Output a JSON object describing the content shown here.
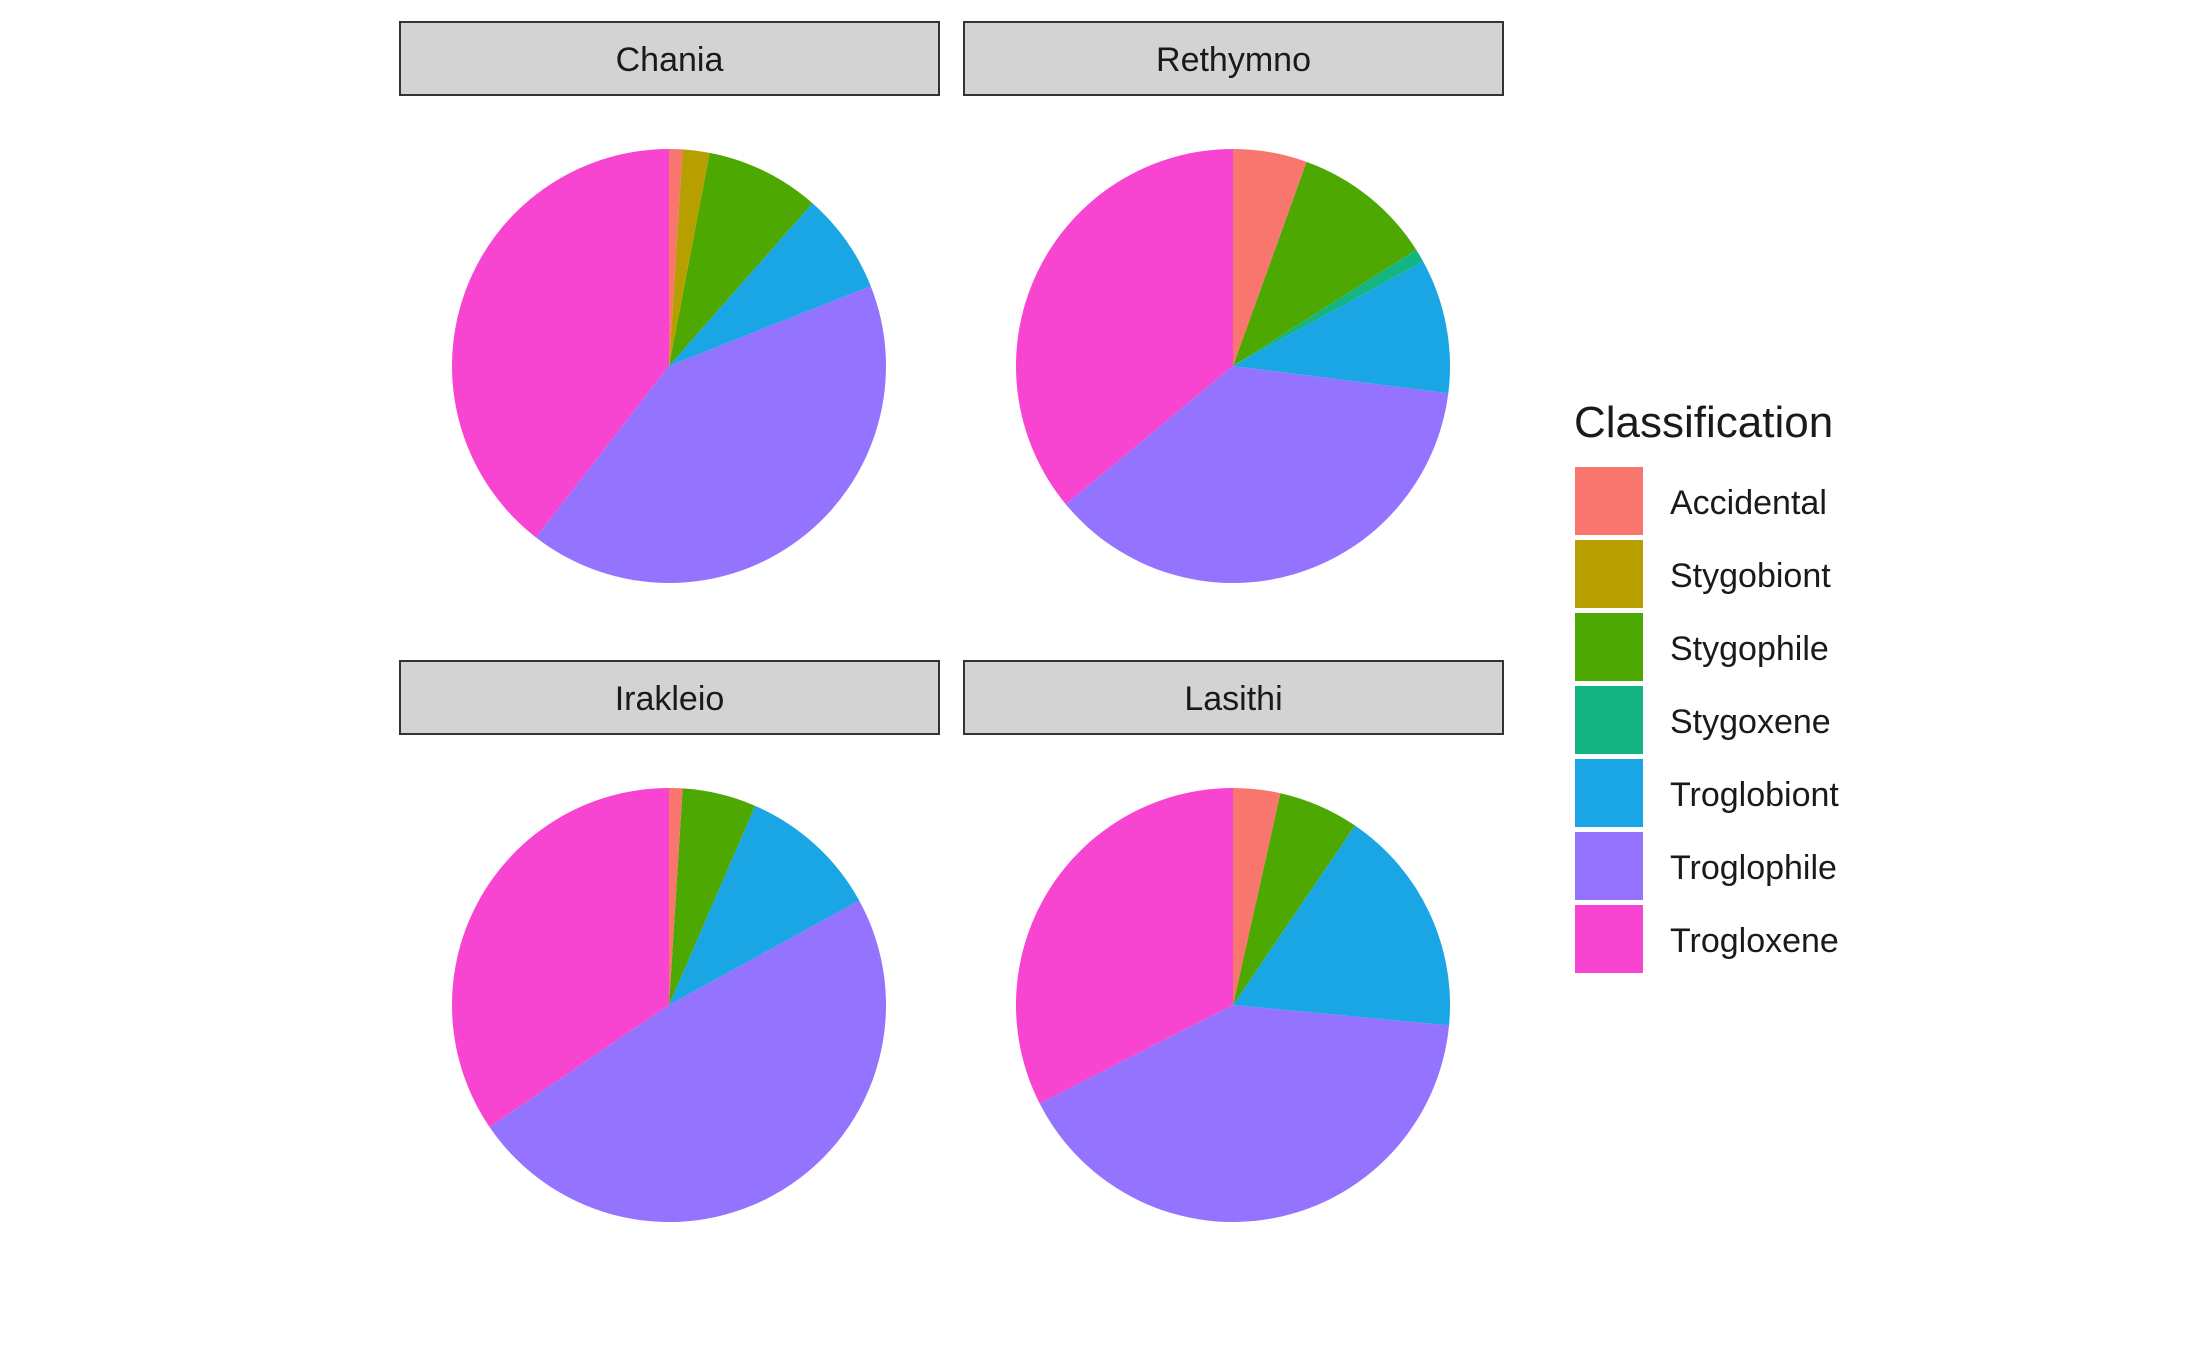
{
  "chart_data": {
    "type": "pie",
    "categories": [
      "Accidental",
      "Stygobiont",
      "Stygophile",
      "Stygoxene",
      "Troglobiont",
      "Troglophile",
      "Trogloxene"
    ],
    "colors": {
      "Accidental": "#F8766D",
      "Stygobiont": "#B79F00",
      "Stygophile": "#4DA802",
      "Stygoxene": "#14B582",
      "Troglobiont": "#1AA6E4",
      "Troglophile": "#9474FF",
      "Trogloxene": "#F745D1"
    },
    "legend": {
      "title": "Classification",
      "position": "right"
    },
    "facets": [
      {
        "name": "Chania",
        "values": {
          "Accidental": 1,
          "Stygobiont": 2,
          "Stygophile": 8.5,
          "Stygoxene": 0,
          "Troglobiont": 7.5,
          "Troglophile": 41.5,
          "Trogloxene": 39.5
        }
      },
      {
        "name": "Rethymno",
        "values": {
          "Accidental": 5.5,
          "Stygobiont": 0,
          "Stygophile": 10.5,
          "Stygoxene": 1,
          "Troglobiont": 10,
          "Troglophile": 37,
          "Trogloxene": 36
        }
      },
      {
        "name": "Irakleio",
        "values": {
          "Accidental": 1,
          "Stygobiont": 0,
          "Stygophile": 5.5,
          "Stygoxene": 0,
          "Troglobiont": 10.5,
          "Troglophile": 48.5,
          "Trogloxene": 34.5
        }
      },
      {
        "name": "Lasithi",
        "values": {
          "Accidental": 3.5,
          "Stygobiont": 0,
          "Stygophile": 6,
          "Stygoxene": 0,
          "Troglobiont": 17,
          "Troglophile": 41,
          "Trogloxene": 32.5
        }
      }
    ]
  }
}
